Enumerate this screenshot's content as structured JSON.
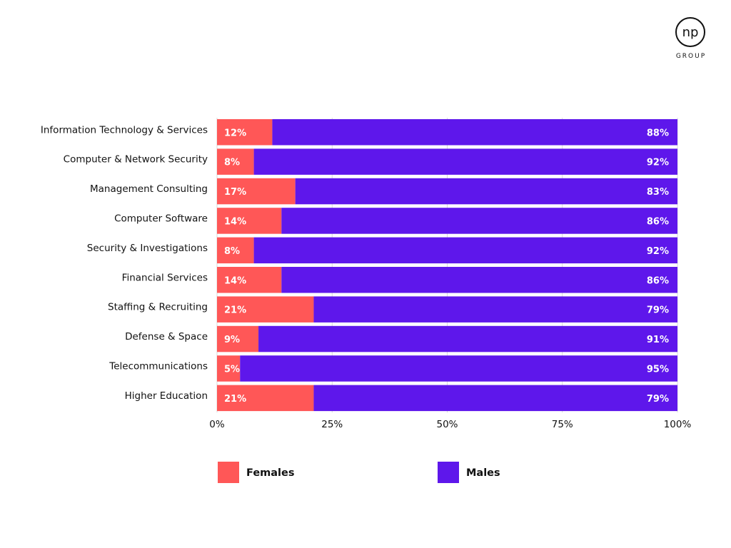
{
  "logo": {
    "mark": "np",
    "sub": "GROUP"
  },
  "colors": {
    "females": "#ff5757",
    "males": "#5e17eb",
    "grid": "#d9d9d9"
  },
  "chart_data": {
    "type": "bar",
    "orientation": "horizontal",
    "stacked": true,
    "categories": [
      "Information Technology & Services",
      "Computer & Network Security",
      "Management Consulting",
      "Computer Software",
      "Security & Investigations",
      "Financial Services",
      "Staffing & Recruiting",
      "Defense & Space",
      "Telecommunications",
      "Higher Education"
    ],
    "series": [
      {
        "name": "Females",
        "values": [
          12,
          8,
          17,
          14,
          8,
          14,
          21,
          9,
          5,
          21
        ]
      },
      {
        "name": "Males",
        "values": [
          88,
          92,
          83,
          86,
          92,
          86,
          79,
          91,
          95,
          79
        ]
      }
    ],
    "xlim": [
      0,
      100
    ],
    "xticks": [
      "0%",
      "25%",
      "50%",
      "75%",
      "100%"
    ],
    "grid": true,
    "legend_position": "bottom",
    "title": "",
    "xlabel": "",
    "ylabel": ""
  }
}
